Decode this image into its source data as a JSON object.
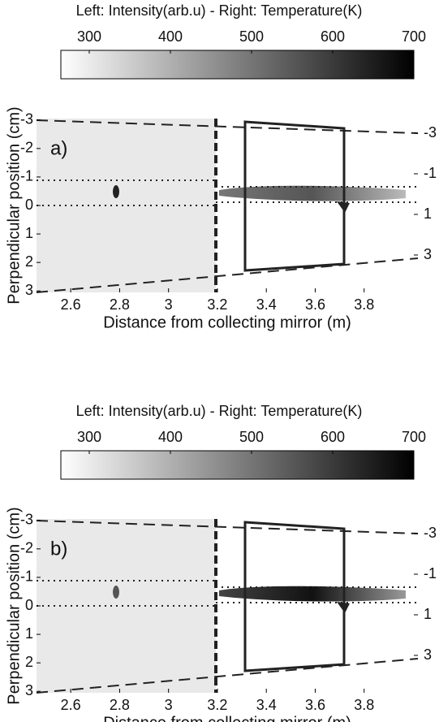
{
  "chart_data": [
    {
      "type": "image",
      "title": "Left: Intensity(arb.u) - Right: Temperature(K)",
      "colorbar_lim": [
        265,
        700
      ],
      "colorbar_ticks": [
        300,
        400,
        500,
        600,
        700
      ],
      "panel_label": "a)",
      "xlabel": "Distance from collecting mirror (m)",
      "ylabel": "Perpendicular position (cm)",
      "xlim": [
        2.46,
        4.02
      ],
      "xticks": [
        2.6,
        2.8,
        3,
        3.2,
        3.4,
        3.6,
        3.8
      ],
      "ylim": [
        3.05,
        -3.05
      ],
      "yticks": [
        -3,
        -2,
        -1,
        0,
        1,
        2,
        3
      ],
      "y2lim": [
        4.84,
        -3.72
      ],
      "y2ticks": [
        -3,
        -1,
        1,
        3
      ]
    },
    {
      "type": "image",
      "title": "Left: Intensity(arb.u) - Right: Temperature(K)",
      "colorbar_lim": [
        265,
        700
      ],
      "colorbar_ticks": [
        300,
        400,
        500,
        600,
        700
      ],
      "panel_label": "b)",
      "xlabel": "Distance from collecting mirror (m)",
      "ylabel": "Perpendicular position (cm)",
      "xlim": [
        2.46,
        4.02
      ],
      "xticks": [
        2.6,
        2.8,
        3,
        3.2,
        3.4,
        3.6,
        3.8
      ],
      "ylim": [
        3.05,
        -3.05
      ],
      "yticks": [
        -3,
        -2,
        -1,
        0,
        1,
        2,
        3
      ],
      "y2lim": [
        4.84,
        -3.72
      ],
      "y2ticks": [
        -3,
        -1,
        1,
        3
      ]
    }
  ]
}
